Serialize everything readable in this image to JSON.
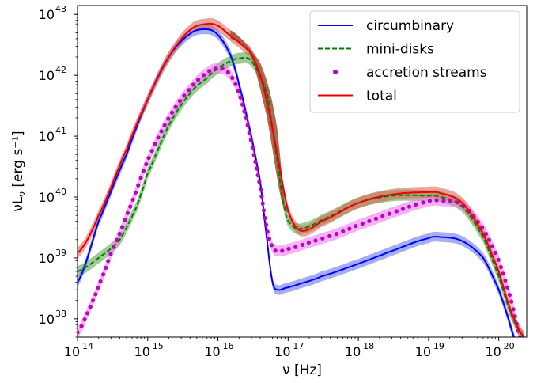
{
  "chart_data": {
    "type": "line",
    "xlabel": "ν [Hz]",
    "ylabel": "νL_ν [erg s⁻¹]",
    "xscale": "log",
    "yscale": "log",
    "xlim": [
      100000000000000.0,
      2.5e+20
    ],
    "ylim": [
      5e+37,
      1.4e+43
    ],
    "grid": false,
    "legend_position": "top-right",
    "xticks": [
      {
        "base": "10",
        "exp": "14"
      },
      {
        "base": "10",
        "exp": "15"
      },
      {
        "base": "10",
        "exp": "16"
      },
      {
        "base": "10",
        "exp": "17"
      },
      {
        "base": "10",
        "exp": "18"
      },
      {
        "base": "10",
        "exp": "19"
      },
      {
        "base": "10",
        "exp": "20"
      }
    ],
    "yticks": [
      {
        "base": "10",
        "exp": "38"
      },
      {
        "base": "10",
        "exp": "39"
      },
      {
        "base": "10",
        "exp": "40"
      },
      {
        "base": "10",
        "exp": "41"
      },
      {
        "base": "10",
        "exp": "42"
      },
      {
        "base": "10",
        "exp": "43"
      }
    ],
    "series": [
      {
        "name": "circumbinary",
        "color": "#0000ff",
        "style": "solid",
        "band_color": "#6b78e8",
        "x": [
          100000000000000.0,
          200000000000000.0,
          500000000000000.0,
          1000000000000000.0,
          2000000000000000.0,
          4000000000000000.0,
          7000000000000000.0,
          1e+16,
          1.5e+16,
          2e+16,
          3e+16,
          4e+16,
          5e+16,
          6e+16,
          7e+16,
          9e+16,
          1.5e+17,
          3e+17,
          1e+18,
          3e+18,
          1e+19,
          1.5e+19,
          3e+19,
          6e+19,
          1e+20,
          1.5e+20,
          2.5e+20
        ],
        "y": [
          4e+38,
          4e+39,
          5e+40,
          4e+41,
          2e+42,
          4.8e+42,
          5.7e+42,
          4.6e+42,
          2.2e+42,
          7e+41,
          1e+41,
          1.8e+40,
          2e+39,
          4e+38,
          3e+38,
          3.2e+38,
          3.8e+38,
          5e+38,
          8e+38,
          1.3e+39,
          2.1e+39,
          2.2e+39,
          1.9e+39,
          1e+39,
          3e+38,
          7e+37,
          1e+37
        ],
        "band_halfwidth_dex": 0.08
      },
      {
        "name": "mini-disks",
        "color": "#008000",
        "style": "dashed",
        "band_color": "#5aa84f",
        "x": [
          100000000000000.0,
          200000000000000.0,
          400000000000000.0,
          700000000000000.0,
          1000000000000000.0,
          2000000000000000.0,
          4000000000000000.0,
          7000000000000000.0,
          1e+16,
          1.5e+16,
          2e+16,
          3e+16,
          5e+16,
          7e+16,
          9e+16,
          1.1e+17,
          1.5e+17,
          3e+17,
          1e+18,
          3e+18,
          1e+19,
          1.5e+19,
          3e+19,
          6e+19,
          1e+20,
          1.5e+20,
          2.3e+20
        ],
        "y": [
          6e+38,
          1e+39,
          2e+39,
          7e+39,
          2.5e+40,
          1.5e+41,
          5e+41,
          9e+41,
          1.3e+42,
          1.7e+42,
          1.9e+42,
          1.7e+42,
          5e+41,
          4e+40,
          6e+39,
          3.5e+39,
          3e+39,
          4.2e+39,
          8e+39,
          1.05e+40,
          1.05e+40,
          1e+40,
          7e+39,
          2.2e+39,
          5e+38,
          1.2e+38,
          5e+37
        ],
        "band_halfwidth_dex": 0.09
      },
      {
        "name": "accretion streams",
        "color": "#bf00bf",
        "style": "dotted",
        "band_color": "#f07ef0",
        "x": [
          100000000000000.0,
          150000000000000.0,
          200000000000000.0,
          300000000000000.0,
          500000000000000.0,
          1000000000000000.0,
          2000000000000000.0,
          4000000000000000.0,
          7000000000000000.0,
          1e+16,
          1.3e+16,
          1.7e+16,
          2.2e+16,
          3e+16,
          4e+16,
          5e+16,
          6e+16,
          7e+16,
          1e+17,
          2e+17,
          5e+17,
          1e+18,
          3e+18,
          1e+19,
          1.5e+19,
          3e+19,
          6e+19,
          1e+20,
          1.5e+20,
          2.3e+20
        ],
        "y": [
          6e+37,
          1.5e+38,
          3.5e+38,
          1.2e+39,
          5e+39,
          4e+40,
          2e+41,
          6e+41,
          1.1e+42,
          1.3e+42,
          1.2e+42,
          8e+41,
          3.5e+41,
          8e+40,
          1.5e+40,
          3e+39,
          1.5e+39,
          1.3e+39,
          1.4e+39,
          1.8e+39,
          2.5e+39,
          3.5e+39,
          5.5e+39,
          8.5e+39,
          8.7e+39,
          7.5e+39,
          3e+39,
          9e+38,
          2e+38,
          3e+37
        ],
        "band_halfwidth_dex": 0.09
      },
      {
        "name": "total",
        "color": "#ee0000",
        "style": "solid",
        "band_color": "#d96a5a",
        "x": [
          100000000000000.0,
          200000000000000.0,
          500000000000000.0,
          1000000000000000.0,
          2000000000000000.0,
          4000000000000000.0,
          7000000000000000.0,
          1e+16,
          1.5e+16,
          2e+16,
          2.5e+16,
          3e+16,
          4e+16,
          5e+16,
          7e+16,
          1e+17,
          1.5e+17,
          3e+17,
          1e+18,
          3e+18,
          1e+19,
          1.5e+19,
          3e+19,
          6e+19,
          1e+20,
          1.5e+20,
          2.3e+20
        ],
        "y": [
          1.2e+39,
          5e+39,
          6e+40,
          4e+41,
          2e+42,
          5.5e+42,
          7e+42,
          6.5e+42,
          4.5e+42,
          3.5e+42,
          2.8e+42,
          2.2e+42,
          1e+42,
          3.5e+41,
          5e+40,
          6e+39,
          2.8e+39,
          4e+39,
          8e+39,
          1.1e+40,
          1.2e+40,
          1.15e+40,
          8e+39,
          2.5e+39,
          6e+38,
          1.3e+38,
          5e+37
        ],
        "band_halfwidth_dex": 0.09
      }
    ],
    "bands": [
      {
        "name": "brown-wedge",
        "color": "#a5573f",
        "x": [
          1.5e+16,
          2e+16,
          3e+16,
          4e+16,
          5e+16,
          6e+16,
          7e+16,
          8e+16,
          9e+16,
          1e+17
        ],
        "lower": [
          4e+42,
          3.3e+42,
          2e+42,
          6e+41,
          2e+41,
          6e+40,
          2e+40,
          9e+39,
          6e+39,
          5.5e+39
        ],
        "upper": [
          5.5e+42,
          4.3e+42,
          2.6e+42,
          1.6e+42,
          8e+41,
          3.5e+41,
          1.3e+41,
          3e+40,
          8e+39,
          7e+39
        ]
      }
    ]
  }
}
